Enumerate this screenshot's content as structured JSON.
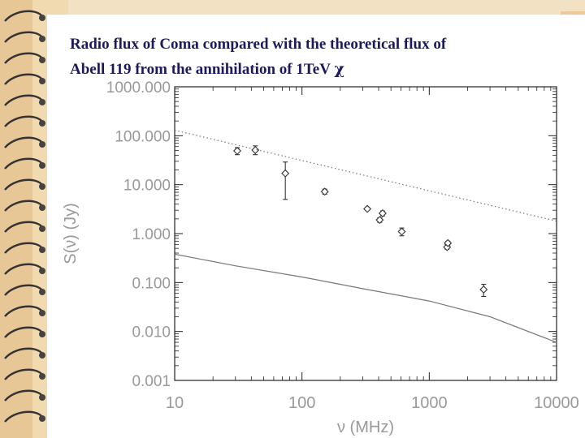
{
  "slide": {
    "title_line1": "Radio flux of Coma compared with  the theoretical flux of",
    "title_line2": "Abell 119 from the annihilation of 1TeV ",
    "title_symbol": "χ",
    "colors": {
      "title": "#1d1a5c",
      "background_band": "#e8c796"
    }
  },
  "chart_data": {
    "type": "scatter",
    "title": "",
    "xlabel": "ν  (MHz)",
    "ylabel": "S(ν)  (Jy)",
    "x_scale": "log",
    "y_scale": "log",
    "xlim": [
      10,
      10000
    ],
    "ylim": [
      0.001,
      1000
    ],
    "x_ticks": [
      10,
      100,
      1000,
      10000
    ],
    "x_tick_labels": [
      "10",
      "100",
      "1000",
      "10000"
    ],
    "y_ticks": [
      0.001,
      0.01,
      0.1,
      1,
      10,
      100,
      1000
    ],
    "y_tick_labels": [
      "0.001",
      "0.010",
      "0.100",
      "1.000",
      "10.000",
      "100.000",
      "1000.000"
    ],
    "series": [
      {
        "kind": "points",
        "marker": "diamond",
        "points": [
          {
            "x": 31,
            "y": 49,
            "yerr_low": 41,
            "yerr_high": 57
          },
          {
            "x": 43,
            "y": 51,
            "yerr_low": 41,
            "yerr_high": 62
          },
          {
            "x": 74,
            "y": 17,
            "yerr_low": 5,
            "yerr_high": 29
          },
          {
            "x": 151,
            "y": 7.2,
            "yerr_low": 6.4,
            "yerr_high": 8.1
          },
          {
            "x": 326,
            "y": 3.2,
            "yerr_low": 3.0,
            "yerr_high": 3.4
          },
          {
            "x": 408,
            "y": 1.9,
            "yerr_low": 1.7,
            "yerr_high": 2.1
          },
          {
            "x": 430,
            "y": 2.6,
            "yerr_low": 2.3,
            "yerr_high": 2.9
          },
          {
            "x": 608,
            "y": 1.1,
            "yerr_low": 0.9,
            "yerr_high": 1.3
          },
          {
            "x": 1380,
            "y": 0.53,
            "yerr_low": 0.48,
            "yerr_high": 0.6
          },
          {
            "x": 1400,
            "y": 0.64,
            "yerr_low": 0.58,
            "yerr_high": 0.7
          },
          {
            "x": 2675,
            "y": 0.072,
            "yerr_low": 0.052,
            "yerr_high": 0.092
          }
        ]
      },
      {
        "kind": "line",
        "style": "dotted",
        "points": [
          {
            "x": 10,
            "y": 130
          },
          {
            "x": 10000,
            "y": 1.8
          }
        ]
      },
      {
        "kind": "line",
        "style": "solid",
        "points": [
          {
            "x": 10,
            "y": 0.38
          },
          {
            "x": 30,
            "y": 0.22
          },
          {
            "x": 100,
            "y": 0.13
          },
          {
            "x": 300,
            "y": 0.075
          },
          {
            "x": 1000,
            "y": 0.042
          },
          {
            "x": 3000,
            "y": 0.02
          },
          {
            "x": 10000,
            "y": 0.006
          }
        ]
      }
    ]
  }
}
